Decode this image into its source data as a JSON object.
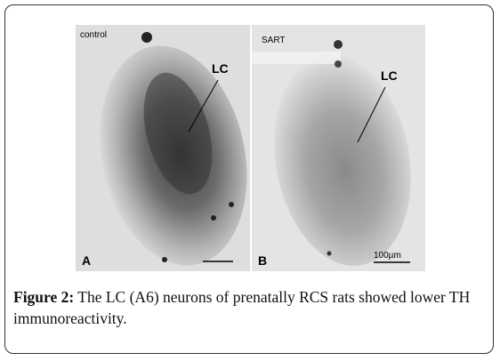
{
  "figure": {
    "panels": [
      {
        "label": "A",
        "condition": "control",
        "region_label": "LC"
      },
      {
        "label": "B",
        "condition": "SART",
        "region_label": "LC",
        "scale_bar": "100µm"
      }
    ],
    "caption": {
      "label": "Figure 2:",
      "text": "The LC (A6) neurons of prenatally RCS rats showed lower TH immunoreactivity."
    }
  }
}
